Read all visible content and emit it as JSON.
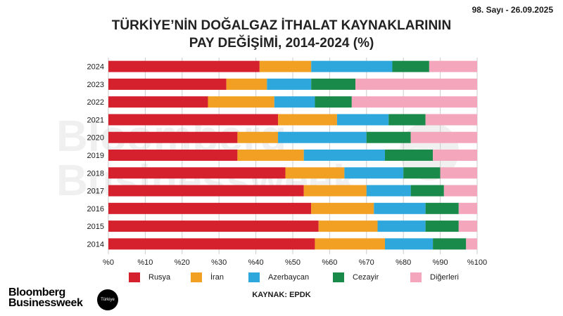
{
  "header": {
    "issue": "98. Sayı - 26.09.2025",
    "title_line1": "TÜRKİYE’NİN DOĞALGAZ İTHALAT KAYNAKLARININ",
    "title_line2": "PAY DEĞİŞİMİ, 2014-2024 (%)"
  },
  "footer": {
    "source": "KAYNAK: EPDK",
    "logo_line1": "Bloomberg",
    "logo_line2": "Businessweek",
    "logo_badge": "Türkiye"
  },
  "watermark": {
    "line1": "Bloomberg",
    "line2": "Businessweek",
    "badge": "Türkiye"
  },
  "colors": {
    "Rusya": "#d5202e",
    "İran": "#f2a023",
    "Azerbaycan": "#2ea7dd",
    "Cezayir": "#1a8a4a",
    "Diğerleri": "#f4a6bc",
    "grid": "#cccccc"
  },
  "chart_data": {
    "type": "bar",
    "orientation": "horizontal",
    "stacked": true,
    "title": "TÜRKİYE’NİN DOĞALGAZ İTHALAT KAYNAKLARININ PAY DEĞİŞİMİ, 2014-2024 (%)",
    "xlabel": "",
    "ylabel": "",
    "xlim": [
      0,
      100
    ],
    "x_ticks": [
      "%0",
      "%10",
      "%20",
      "%30",
      "%40",
      "%50",
      "%60",
      "%70",
      "%80",
      "%90",
      "%100"
    ],
    "grid": true,
    "legend_position": "bottom",
    "categories": [
      "2024",
      "2023",
      "2022",
      "2021",
      "2020",
      "2019",
      "2018",
      "2017",
      "2016",
      "2015",
      "2014"
    ],
    "series": [
      {
        "name": "Rusya",
        "values": [
          41,
          32,
          27,
          46,
          35,
          35,
          48,
          53,
          55,
          57,
          56
        ]
      },
      {
        "name": "İran",
        "values": [
          14,
          11,
          18,
          16,
          11,
          18,
          16,
          17,
          17,
          16,
          19
        ]
      },
      {
        "name": "Azerbaycan",
        "values": [
          22,
          12,
          11,
          14,
          24,
          22,
          16,
          12,
          14,
          13,
          13
        ]
      },
      {
        "name": "Cezayir",
        "values": [
          10,
          12,
          10,
          10,
          12,
          13,
          10,
          9,
          9,
          9,
          9
        ]
      },
      {
        "name": "Diğerleri",
        "values": [
          13,
          33,
          34,
          14,
          18,
          12,
          10,
          9,
          5,
          5,
          3
        ]
      }
    ]
  }
}
